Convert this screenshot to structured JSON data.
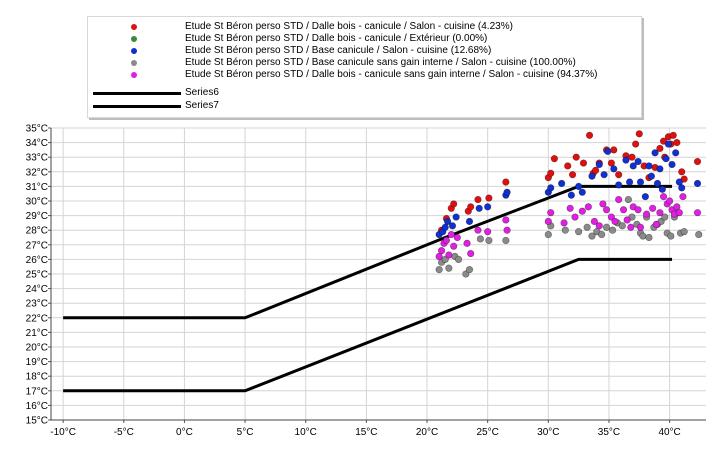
{
  "chart_data": {
    "type": "scatter",
    "xlabel": "",
    "ylabel": "",
    "xlim": [
      -11,
      43
    ],
    "ylim": [
      15,
      35
    ],
    "x_ticks": [
      {
        "value": -10,
        "label": "-10°C"
      },
      {
        "value": -5,
        "label": "-5°C"
      },
      {
        "value": 0,
        "label": "0°C"
      },
      {
        "value": 5,
        "label": "5°C"
      },
      {
        "value": 10,
        "label": "10°C"
      },
      {
        "value": 15,
        "label": "15°C"
      },
      {
        "value": 20,
        "label": "20°C"
      },
      {
        "value": 25,
        "label": "25°C"
      },
      {
        "value": 30,
        "label": "30°C"
      },
      {
        "value": 35,
        "label": "35°C"
      },
      {
        "value": 40,
        "label": "40°C"
      }
    ],
    "y_ticks": [
      {
        "value": 15,
        "label": "15°C"
      },
      {
        "value": 16,
        "label": "16°C"
      },
      {
        "value": 17,
        "label": "17°C"
      },
      {
        "value": 18,
        "label": "18°C"
      },
      {
        "value": 19,
        "label": "19°C"
      },
      {
        "value": 20,
        "label": "20°C"
      },
      {
        "value": 21,
        "label": "21°C"
      },
      {
        "value": 22,
        "label": "22°C"
      },
      {
        "value": 23,
        "label": "23°C"
      },
      {
        "value": 24,
        "label": "24°C"
      },
      {
        "value": 25,
        "label": "25°C"
      },
      {
        "value": 26,
        "label": "26°C"
      },
      {
        "value": 27,
        "label": "27°C"
      },
      {
        "value": 28,
        "label": "28°C"
      },
      {
        "value": 29,
        "label": "29°C"
      },
      {
        "value": 30,
        "label": "30°C"
      },
      {
        "value": 31,
        "label": "31°C"
      },
      {
        "value": 32,
        "label": "32°C"
      },
      {
        "value": 33,
        "label": "33°C"
      },
      {
        "value": 34,
        "label": "34°C"
      },
      {
        "value": 35,
        "label": "35°C"
      }
    ],
    "grid": true,
    "legend_position": "top",
    "series": [
      {
        "name": "Etude St Béron perso STD  /  Dalle bois - canicule / Salon - cuisine (4.23%)",
        "kind": "scatter",
        "color": "#e01010",
        "points": [
          [
            21.2,
            28.0
          ],
          [
            21.6,
            28.8
          ],
          [
            22.0,
            29.5
          ],
          [
            22.2,
            29.8
          ],
          [
            23.4,
            29.3
          ],
          [
            23.6,
            29.6
          ],
          [
            24.2,
            30.1
          ],
          [
            25.1,
            30.2
          ],
          [
            26.5,
            31.3
          ],
          [
            30.0,
            31.6
          ],
          [
            30.2,
            31.9
          ],
          [
            30.5,
            32.9
          ],
          [
            31.6,
            32.4
          ],
          [
            32.0,
            31.8
          ],
          [
            32.3,
            33.0
          ],
          [
            32.9,
            32.6
          ],
          [
            33.4,
            34.5
          ],
          [
            33.7,
            31.9
          ],
          [
            33.9,
            32.1
          ],
          [
            34.2,
            32.6
          ],
          [
            34.8,
            33.5
          ],
          [
            35.2,
            32.6
          ],
          [
            35.4,
            33.5
          ],
          [
            35.8,
            31.8
          ],
          [
            36.4,
            33.1
          ],
          [
            36.9,
            33.0
          ],
          [
            37.2,
            33.9
          ],
          [
            37.5,
            34.6
          ],
          [
            37.9,
            32.4
          ],
          [
            38.3,
            31.6
          ],
          [
            38.8,
            32.3
          ],
          [
            39.2,
            33.6
          ],
          [
            39.5,
            34.1
          ],
          [
            39.6,
            33.0
          ],
          [
            39.9,
            34.4
          ],
          [
            40.1,
            33.9
          ],
          [
            40.3,
            34.5
          ],
          [
            40.6,
            34.0
          ],
          [
            41.0,
            32.0
          ],
          [
            41.2,
            31.5
          ],
          [
            42.3,
            32.7
          ]
        ]
      },
      {
        "name": "Etude St Béron perso STD  /  Dalle bois - canicule / Extérieur (0.00%)",
        "kind": "scatter",
        "color": "#3a8a3a",
        "points": []
      },
      {
        "name": "Etude St Béron perso STD  /  Base canicule / Salon - cuisine (12.68%)",
        "kind": "scatter",
        "color": "#1030d0",
        "points": [
          [
            21.0,
            27.7
          ],
          [
            21.3,
            27.9
          ],
          [
            21.5,
            28.2
          ],
          [
            21.7,
            28.6
          ],
          [
            22.1,
            28.3
          ],
          [
            22.4,
            28.9
          ],
          [
            23.5,
            28.6
          ],
          [
            24.3,
            29.5
          ],
          [
            25.0,
            29.6
          ],
          [
            26.5,
            30.4
          ],
          [
            26.6,
            30.6
          ],
          [
            30.0,
            30.6
          ],
          [
            30.2,
            30.9
          ],
          [
            31.1,
            31.2
          ],
          [
            31.9,
            30.4
          ],
          [
            32.5,
            31.0
          ],
          [
            32.8,
            30.6
          ],
          [
            33.6,
            31.7
          ],
          [
            34.2,
            32.5
          ],
          [
            34.6,
            31.8
          ],
          [
            34.9,
            33.4
          ],
          [
            35.4,
            32.2
          ],
          [
            35.8,
            31.1
          ],
          [
            36.4,
            32.8
          ],
          [
            36.7,
            31.3
          ],
          [
            37.0,
            32.4
          ],
          [
            37.4,
            32.7
          ],
          [
            37.6,
            31.3
          ],
          [
            38.0,
            30.3
          ],
          [
            38.3,
            32.4
          ],
          [
            38.5,
            31.7
          ],
          [
            38.8,
            33.3
          ],
          [
            39.0,
            31.2
          ],
          [
            39.2,
            32.2
          ],
          [
            39.4,
            30.8
          ],
          [
            39.7,
            32.9
          ],
          [
            39.9,
            33.9
          ],
          [
            40.2,
            32.5
          ],
          [
            40.5,
            33.3
          ],
          [
            40.8,
            31.3
          ],
          [
            41.0,
            30.9
          ],
          [
            42.3,
            31.2
          ]
        ]
      },
      {
        "name": "Etude St Béron perso STD  /  Base canicule sans gain interne / Salon - cuisine (100.00%)",
        "kind": "scatter",
        "color": "#8a8a8a",
        "points": [
          [
            21.0,
            25.3
          ],
          [
            21.2,
            25.8
          ],
          [
            21.5,
            26.0
          ],
          [
            21.8,
            25.4
          ],
          [
            22.3,
            26.2
          ],
          [
            22.6,
            26.0
          ],
          [
            23.2,
            25.0
          ],
          [
            23.5,
            25.3
          ],
          [
            24.4,
            27.4
          ],
          [
            25.1,
            27.3
          ],
          [
            26.5,
            27.3
          ],
          [
            30.0,
            27.7
          ],
          [
            30.2,
            28.3
          ],
          [
            31.4,
            28.0
          ],
          [
            32.5,
            27.9
          ],
          [
            33.2,
            28.2
          ],
          [
            33.6,
            27.6
          ],
          [
            34.0,
            27.9
          ],
          [
            34.4,
            27.7
          ],
          [
            34.8,
            28.2
          ],
          [
            35.3,
            28.0
          ],
          [
            35.7,
            28.5
          ],
          [
            36.1,
            28.3
          ],
          [
            36.6,
            30.1
          ],
          [
            36.9,
            28.9
          ],
          [
            37.3,
            28.4
          ],
          [
            37.6,
            27.8
          ],
          [
            37.8,
            27.6
          ],
          [
            38.1,
            28.9
          ],
          [
            38.3,
            27.5
          ],
          [
            38.7,
            28.2
          ],
          [
            39.0,
            28.4
          ],
          [
            39.3,
            28.6
          ],
          [
            39.6,
            28.9
          ],
          [
            39.8,
            27.8
          ],
          [
            40.1,
            27.6
          ],
          [
            40.4,
            28.9
          ],
          [
            40.7,
            29.2
          ],
          [
            40.9,
            27.8
          ],
          [
            41.2,
            27.9
          ],
          [
            42.4,
            27.7
          ]
        ]
      },
      {
        "name": "Etude St Béron perso STD  /  Dalle bois - canicule sans gain interne / Salon - cuisine (94.37%)",
        "kind": "scatter",
        "color": "#e020e0",
        "points": [
          [
            21.0,
            26.2
          ],
          [
            21.2,
            26.6
          ],
          [
            21.4,
            27.1
          ],
          [
            21.6,
            27.3
          ],
          [
            21.8,
            26.3
          ],
          [
            22.0,
            27.7
          ],
          [
            22.2,
            26.9
          ],
          [
            22.5,
            27.5
          ],
          [
            23.3,
            27.1
          ],
          [
            23.6,
            26.4
          ],
          [
            24.2,
            28.0
          ],
          [
            25.0,
            27.9
          ],
          [
            26.5,
            28.7
          ],
          [
            26.6,
            28.0
          ],
          [
            30.0,
            28.6
          ],
          [
            30.2,
            29.2
          ],
          [
            31.3,
            28.5
          ],
          [
            31.8,
            29.5
          ],
          [
            32.2,
            28.9
          ],
          [
            32.8,
            29.3
          ],
          [
            33.3,
            29.6
          ],
          [
            33.8,
            28.6
          ],
          [
            34.2,
            28.3
          ],
          [
            34.5,
            29.8
          ],
          [
            34.8,
            29.4
          ],
          [
            35.2,
            28.9
          ],
          [
            35.5,
            28.6
          ],
          [
            35.8,
            30.1
          ],
          [
            36.2,
            29.4
          ],
          [
            36.5,
            28.7
          ],
          [
            36.8,
            28.2
          ],
          [
            37.0,
            29.6
          ],
          [
            37.4,
            29.4
          ],
          [
            37.6,
            28.2
          ],
          [
            38.1,
            29.1
          ],
          [
            38.6,
            29.5
          ],
          [
            38.9,
            28.4
          ],
          [
            39.2,
            29.2
          ],
          [
            39.5,
            30.3
          ],
          [
            39.8,
            29.8
          ],
          [
            40.0,
            30.0
          ],
          [
            40.2,
            29.4
          ],
          [
            40.4,
            29.1
          ],
          [
            40.6,
            29.6
          ],
          [
            40.8,
            29.2
          ],
          [
            41.1,
            30.3
          ],
          [
            42.3,
            29.2
          ]
        ]
      },
      {
        "name": "Series6",
        "kind": "line",
        "color": "#000000",
        "points": [
          [
            -10,
            22
          ],
          [
            5,
            22
          ],
          [
            21.5,
            27.5
          ],
          [
            32.5,
            31.0
          ],
          [
            40.2,
            31.0
          ]
        ]
      },
      {
        "name": "Series7",
        "kind": "line",
        "color": "#000000",
        "points": [
          [
            -10,
            17
          ],
          [
            5,
            17
          ],
          [
            32.5,
            26
          ],
          [
            40.2,
            26
          ]
        ]
      }
    ]
  }
}
